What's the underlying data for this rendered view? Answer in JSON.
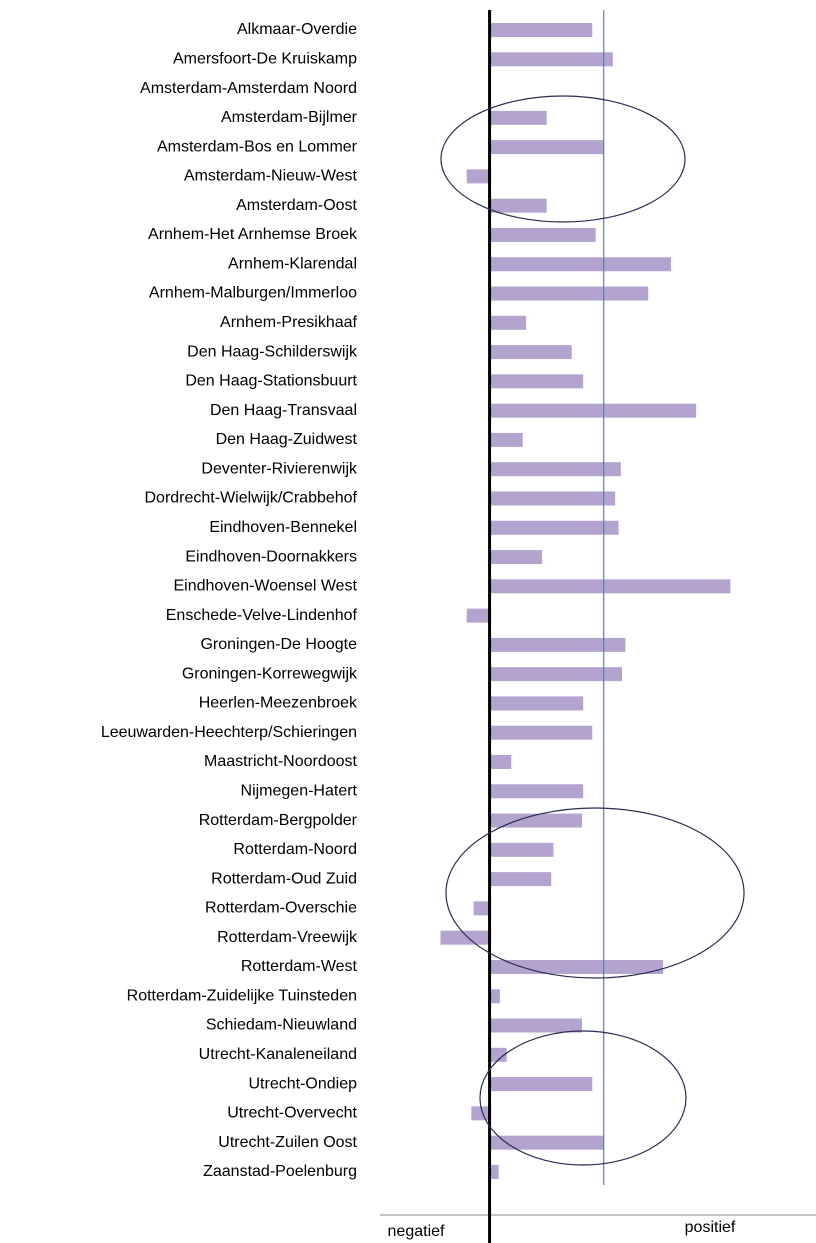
{
  "chart_data": {
    "type": "bar",
    "orientation": "horizontal",
    "categories": [
      "Alkmaar-Overdie",
      "Amersfoort-De Kruiskamp",
      "Amsterdam-Amsterdam Noord",
      "Amsterdam-Bijlmer",
      "Amsterdam-Bos en Lommer",
      "Amsterdam-Nieuw-West",
      "Amsterdam-Oost",
      "Arnhem-Het Arnhemse Broek",
      "Arnhem-Klarendal",
      "Arnhem-Malburgen/Immerloo",
      "Arnhem-Presikhaaf",
      "Den Haag-Schilderswijk",
      "Den Haag-Stationsbuurt",
      "Den Haag-Transvaal",
      "Den Haag-Zuidwest",
      "Deventer-Rivierenwijk",
      "Dordrecht-Wielwijk/Crabbehof",
      "Eindhoven-Bennekel",
      "Eindhoven-Doornakkers",
      "Eindhoven-Woensel West",
      "Enschede-Velve-Lindenhof",
      "Groningen-De Hoogte",
      "Groningen-Korrewegwijk",
      "Heerlen-Meezenbroek",
      "Leeuwarden-Heechterp/Schieringen",
      "Maastricht-Noordoost",
      "Nijmegen-Hatert",
      "Rotterdam-Bergpolder",
      "Rotterdam-Noord",
      "Rotterdam-Oud Zuid",
      "Rotterdam-Overschie",
      "Rotterdam-Vreewijk",
      "Rotterdam-West",
      "Rotterdam-Zuidelijke Tuinsteden",
      "Schiedam-Nieuwland",
      "Utrecht-Kanaleneiland",
      "Utrecht-Ondiep",
      "Utrecht-Overvecht",
      "Utrecht-Zuilen Oost",
      "Zaanstad-Poelenburg"
    ],
    "values": [
      0.9,
      1.08,
      0,
      0.5,
      1.0,
      -0.2,
      0.5,
      0.93,
      1.59,
      1.39,
      0.32,
      0.72,
      0.82,
      1.81,
      0.29,
      1.15,
      1.1,
      1.13,
      0.46,
      2.11,
      -0.2,
      1.19,
      1.16,
      0.82,
      0.9,
      0.19,
      0.82,
      0.81,
      0.56,
      0.54,
      -0.14,
      -0.43,
      1.52,
      0.09,
      0.81,
      0.15,
      0.9,
      -0.16,
      1.0,
      0.08
    ],
    "color": "#b3a3cf",
    "reference_line": 1,
    "reference_color": "#4f81bd",
    "xlim": [
      -0.96,
      2.86
    ],
    "negative_label": "negatief",
    "positive_label": "positief"
  }
}
